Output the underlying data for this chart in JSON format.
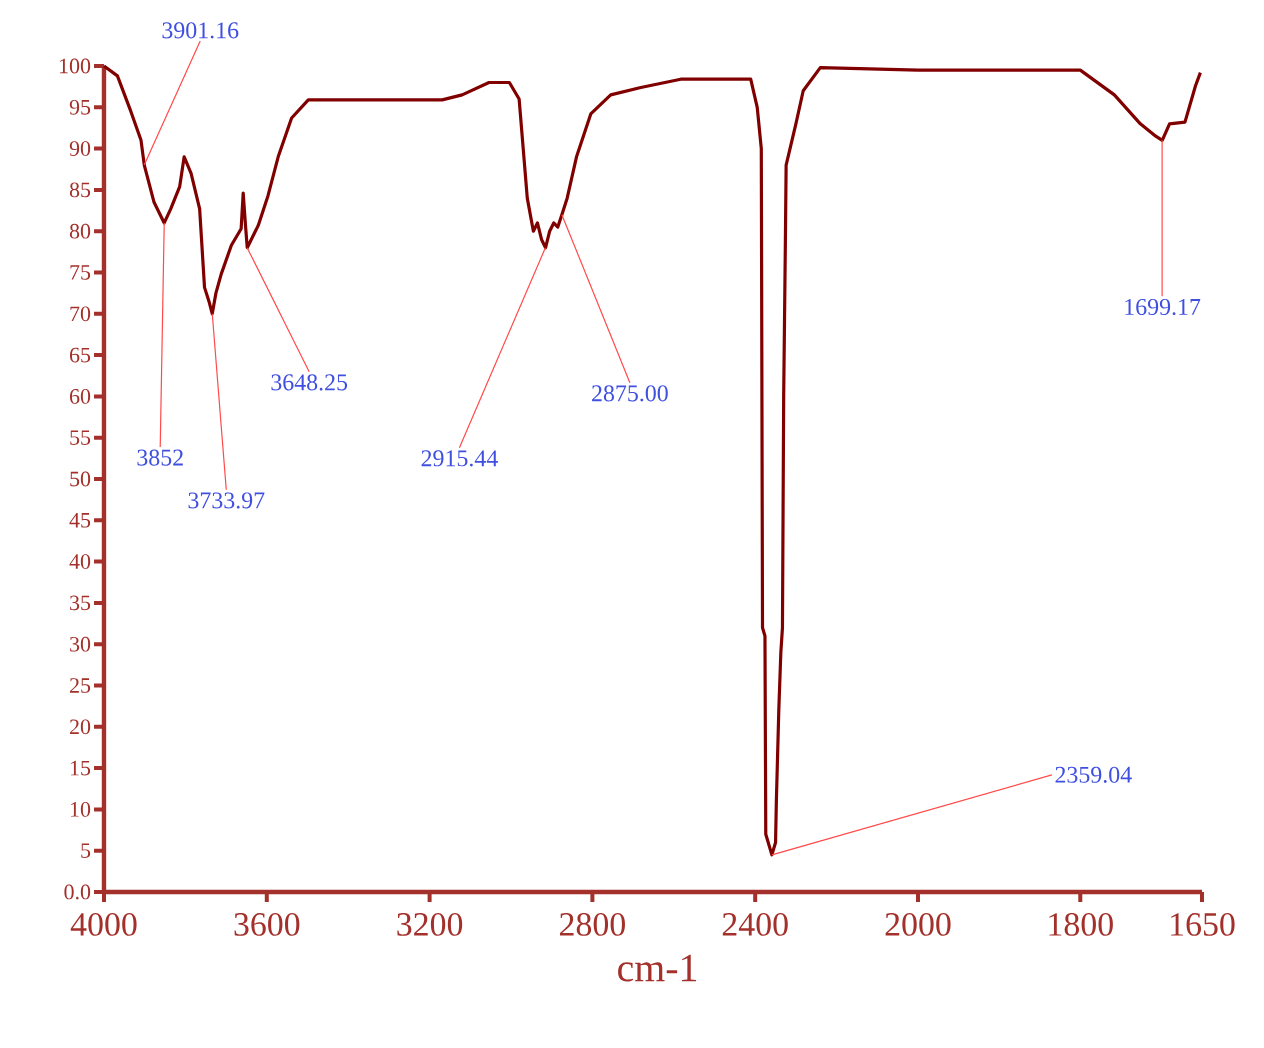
{
  "chart_data": [
    {
      "type": "line",
      "xlabel": "cm-1",
      "xlim": [
        4000,
        2000
      ],
      "xticks": [
        4000,
        3600,
        3200,
        2800,
        2400,
        2000
      ],
      "ylim": [
        0,
        100
      ],
      "yticks": [
        {
          "value": 0,
          "label": "0.0"
        },
        5,
        10,
        15,
        20,
        25,
        30,
        35,
        40,
        45,
        50,
        55,
        60,
        65,
        70,
        75,
        80,
        85,
        90,
        95,
        100
      ],
      "series": [
        {
          "color": "#800000",
          "x": [
            4000,
            3967,
            3934,
            3909,
            3901,
            3877,
            3852,
            3836,
            3814,
            3803,
            3786,
            3765,
            3753,
            3742,
            3734,
            3725,
            3712,
            3687,
            3663,
            3658,
            3652,
            3648,
            3621,
            3597,
            3572,
            3539,
            3498,
            3169,
            3120,
            3054,
            3004,
            2980,
            2960,
            2945,
            2935,
            2925,
            2915,
            2905,
            2895,
            2885,
            2875,
            2862,
            2839,
            2804,
            2755,
            2681,
            2583,
            2411,
            2395,
            2385,
            2382,
            2376,
            2374,
            2359,
            2350,
            2348,
            2342,
            2337,
            2333,
            2330,
            2326,
            2324,
            2300,
            2282,
            2240,
            2000
          ],
          "values": [
            100,
            98.8,
            94.5,
            91,
            88,
            83.5,
            81,
            82.7,
            85.4,
            89,
            87,
            82.7,
            73.2,
            71.5,
            70,
            72.5,
            74.8,
            78.3,
            80.3,
            84.6,
            80.5,
            78,
            80.7,
            84.3,
            89,
            93.7,
            95.9,
            95.9,
            96.5,
            98,
            98,
            96,
            84,
            80,
            81,
            79,
            78,
            80,
            81,
            80.5,
            82,
            84,
            89,
            94.2,
            96.5,
            97.4,
            98.4,
            98.4,
            95,
            90,
            32,
            31,
            7,
            4.5,
            6,
            11,
            22,
            29,
            32,
            60,
            78,
            88,
            93,
            97,
            99.8,
            99.5
          ]
        }
      ],
      "annotations": [
        {
          "text": "3901.16",
          "x": 3901.16,
          "y": 88
        },
        {
          "text": "3852",
          "x": 3852,
          "y": 81
        },
        {
          "text": "3733.97",
          "x": 3733.97,
          "y": 70
        },
        {
          "text": "3648.25",
          "x": 3648.25,
          "y": 78
        },
        {
          "text": "2915.44",
          "x": 2915.44,
          "y": 78
        },
        {
          "text": "2875.00",
          "x": 2875.0,
          "y": 82
        },
        {
          "text": "2359.04",
          "x": 2359.04,
          "y": 4.5
        }
      ]
    },
    {
      "type": "line",
      "tick_labels": "x",
      "xlim": [
        2000,
        1650
      ],
      "xticks": [
        1800,
        1650
      ],
      "ylim": [
        0,
        100
      ],
      "series": [
        {
          "color": "#800000",
          "x": [
            2000,
            1800,
            1758,
            1726,
            1707,
            1699,
            1690,
            1671,
            1658,
            1652
          ],
          "values": [
            99.5,
            99.5,
            96.5,
            93,
            91.5,
            91,
            93,
            93.2,
            97.6,
            99.2
          ]
        }
      ],
      "annotations": [
        {
          "text": "1699.17",
          "x": 1699.17,
          "y": 91
        }
      ]
    }
  ]
}
